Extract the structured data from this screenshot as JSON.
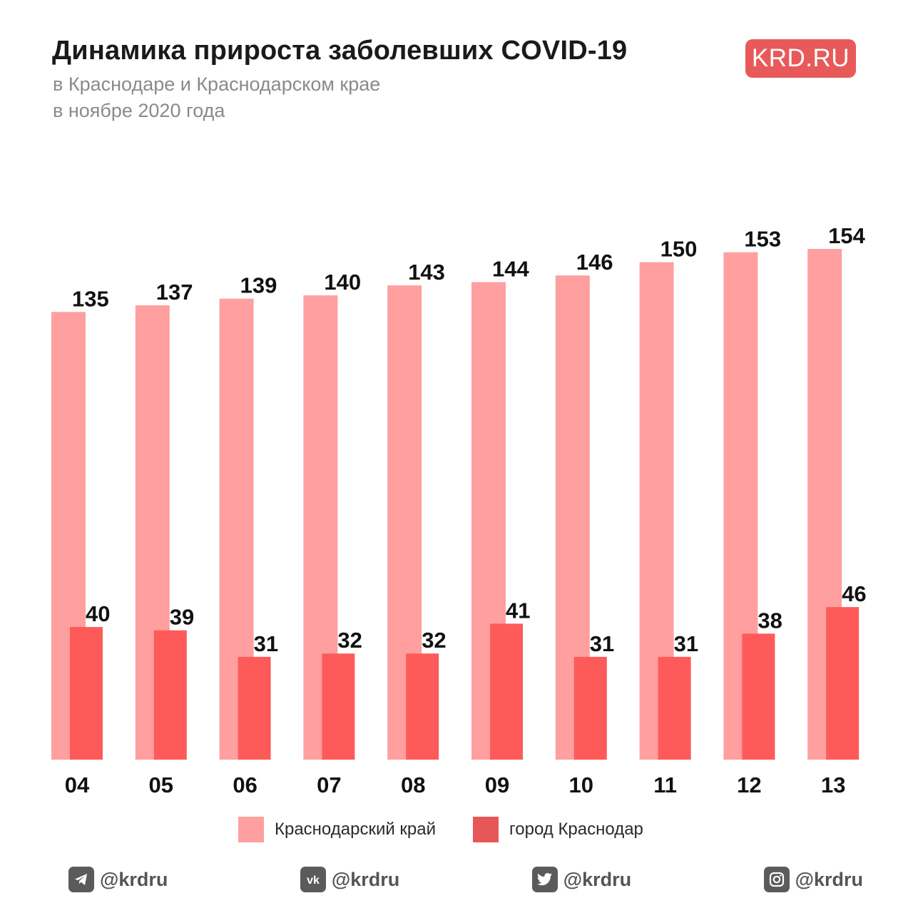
{
  "header": {
    "title": "Динамика прироста заболевших COVID-19",
    "subtitle_line1": "в Краснодаре и Краснодарском крае",
    "subtitle_line2": "в ноябре 2020 года",
    "logo_text": "KRD.RU"
  },
  "colors": {
    "region": "#ff9f9f",
    "city": "#ff5a5a",
    "legend_city": "#e85757",
    "logo_bg": "#e85a5a",
    "value_text": "#111111"
  },
  "chart_data": {
    "type": "bar",
    "title": "Динамика прироста заболевших COVID-19",
    "categories": [
      "04",
      "05",
      "06",
      "07",
      "08",
      "09",
      "10",
      "11",
      "12",
      "13"
    ],
    "series": [
      {
        "name": "Краснодарский край",
        "values": [
          135,
          137,
          139,
          140,
          143,
          144,
          146,
          150,
          153,
          154
        ]
      },
      {
        "name": "город Краснодар",
        "values": [
          40,
          39,
          31,
          32,
          32,
          41,
          31,
          31,
          38,
          46
        ]
      }
    ],
    "ylim": [
      0,
      154
    ],
    "grid": false,
    "legend_position": "bottom"
  },
  "legend": {
    "region_label": "Краснодарский край",
    "city_label": "город Краснодар"
  },
  "footer": {
    "items": [
      {
        "icon": "telegram-icon",
        "handle": "@krdru"
      },
      {
        "icon": "vk-icon",
        "handle": "@krdru"
      },
      {
        "icon": "twitter-icon",
        "handle": "@krdru"
      },
      {
        "icon": "instagram-icon",
        "handle": "@krdru"
      }
    ]
  }
}
